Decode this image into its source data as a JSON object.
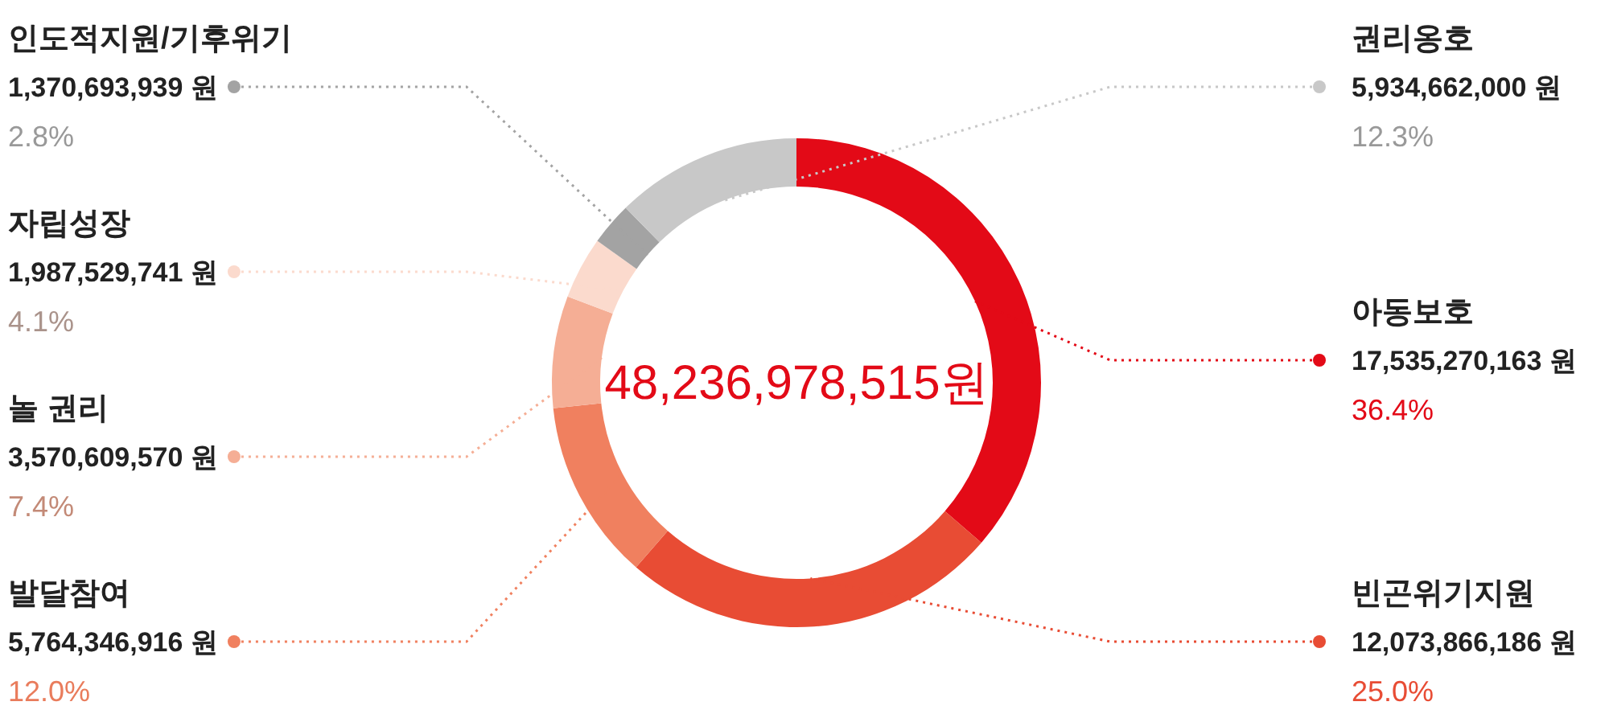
{
  "chart_data": {
    "type": "donut",
    "title": "48,236,978,515원",
    "categories": [
      "아동보호",
      "빈곤위기지원",
      "발달참여",
      "놀 권리",
      "자립성장",
      "인도적지원/기후위기",
      "권리옹호"
    ],
    "values": [
      17535270163,
      12073866186,
      5764346916,
      3570609570,
      1987529741,
      1370693939,
      5934662000
    ],
    "value_labels": [
      "17,535,270,163 원",
      "12,073,866,186 원",
      "5,764,346,916 원",
      "3,570,609,570 원",
      "1,987,529,741 원",
      "1,370,693,939 원",
      "5,934,662,000 원"
    ],
    "colors": [
      "#e30a17",
      "#e84c34",
      "#f0805f",
      "#f5ae95",
      "#fbdacd",
      "#a3a3a3",
      "#c8c8c8"
    ],
    "annotations": [
      "36.4%",
      "25.0%",
      "12.0%",
      "7.4%",
      "4.1%",
      "2.8%",
      "12.3%"
    ]
  }
}
